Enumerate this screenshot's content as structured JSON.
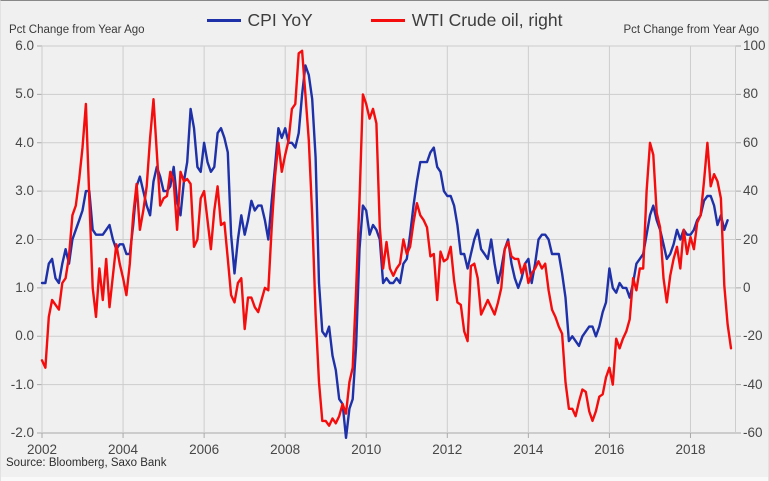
{
  "legend": {
    "items": [
      {
        "label": "CPI YoY",
        "color": "#1e31a8"
      },
      {
        "label": "WTI Crude oil, right",
        "color": "#f50d0d"
      }
    ]
  },
  "left_axis_caption": "Pct Change from Year Ago",
  "right_axis_caption": "Pct Change from Year Ago",
  "source_text": "Source: Bloomberg, Saxo Bank",
  "colors": {
    "background": "#f0f0f0",
    "gridline": "#cdcdcd",
    "axis_line": "#a9a9a9",
    "tick_text": "#474747",
    "cpi_line": "#1e31a8",
    "wti_line": "#f50d0d"
  },
  "chart_data": {
    "type": "line",
    "title": "",
    "x_frequency": "monthly",
    "x_start": {
      "year": 2002,
      "month": 1
    },
    "x_end": {
      "year": 2019,
      "month": 1
    },
    "x_tick_labels": [
      "2002",
      "2004",
      "2006",
      "2008",
      "2010",
      "2012",
      "2014",
      "2016",
      "2018"
    ],
    "grid": true,
    "legend_position": "top",
    "left_axis": {
      "label": "Pct Change from Year Ago",
      "min": -2.0,
      "max": 6.0,
      "ticks": [
        "6.0",
        "5.0",
        "4.0",
        "3.0",
        "2.0",
        "1.0",
        "0.0",
        "-1.0",
        "-2.0"
      ]
    },
    "right_axis": {
      "label": "Pct Change from Year Ago",
      "min": -60,
      "max": 100,
      "ticks": [
        "100",
        "80",
        "60",
        "40",
        "20",
        "0",
        "-20",
        "-40",
        "-60"
      ]
    },
    "series": [
      {
        "name": "CPI YoY",
        "axis": "left",
        "color": "#1e31a8",
        "values": [
          1.1,
          1.1,
          1.5,
          1.6,
          1.2,
          1.1,
          1.5,
          1.8,
          1.5,
          2.0,
          2.2,
          2.4,
          2.6,
          3.0,
          3.0,
          2.2,
          2.1,
          2.1,
          2.1,
          2.2,
          2.3,
          2.0,
          1.8,
          1.9,
          1.9,
          1.7,
          1.7,
          2.3,
          3.1,
          3.3,
          3.0,
          2.7,
          2.5,
          3.2,
          3.5,
          3.3,
          3.0,
          3.0,
          3.1,
          3.5,
          2.8,
          2.5,
          3.2,
          3.6,
          4.7,
          4.3,
          3.5,
          3.4,
          4.0,
          3.6,
          3.4,
          3.5,
          4.2,
          4.3,
          4.1,
          3.8,
          2.1,
          1.3,
          2.0,
          2.5,
          2.1,
          2.4,
          2.8,
          2.6,
          2.7,
          2.7,
          2.4,
          2.0,
          2.8,
          3.5,
          4.3,
          4.1,
          4.3,
          4.0,
          4.0,
          3.9,
          4.2,
          5.0,
          5.6,
          5.4,
          4.9,
          3.7,
          1.1,
          0.1,
          0.0,
          0.2,
          -0.4,
          -0.7,
          -1.3,
          -1.4,
          -2.1,
          -1.5,
          -1.3,
          -0.2,
          1.8,
          2.7,
          2.6,
          2.1,
          2.3,
          2.2,
          2.0,
          1.1,
          1.2,
          1.1,
          1.1,
          1.2,
          1.1,
          1.5,
          1.6,
          2.1,
          2.7,
          3.2,
          3.6,
          3.6,
          3.6,
          3.8,
          3.9,
          3.5,
          3.4,
          3.0,
          2.9,
          2.9,
          2.7,
          2.3,
          1.7,
          1.7,
          1.4,
          1.7,
          2.0,
          2.2,
          1.8,
          1.7,
          1.6,
          2.0,
          1.5,
          1.1,
          1.4,
          1.8,
          2.0,
          1.5,
          1.2,
          1.0,
          1.2,
          1.5,
          1.6,
          1.1,
          1.5,
          2.0,
          2.1,
          2.1,
          2.0,
          1.7,
          1.7,
          1.7,
          1.3,
          0.8,
          -0.1,
          0.0,
          -0.1,
          -0.2,
          0.0,
          0.1,
          0.2,
          0.2,
          0.0,
          0.2,
          0.5,
          0.7,
          1.4,
          1.0,
          0.9,
          1.1,
          1.0,
          1.0,
          0.8,
          1.1,
          1.5,
          1.6,
          1.7,
          2.1,
          2.5,
          2.7,
          2.4,
          2.2,
          1.9,
          1.6,
          1.7,
          1.9,
          2.2,
          2.0,
          2.2,
          2.1,
          2.1,
          2.2,
          2.4,
          2.5,
          2.8,
          2.9,
          2.9,
          2.7,
          2.3,
          2.5,
          2.2,
          2.4,
          null
        ]
      },
      {
        "name": "WTI Crude oil, right",
        "axis": "right",
        "color": "#f50d0d",
        "values": [
          -30,
          -33,
          -12,
          -5,
          -7,
          -9,
          2,
          4,
          13,
          30,
          34,
          45,
          58,
          76,
          37,
          0,
          -12,
          8,
          -5,
          12,
          -8,
          5,
          18,
          10,
          4,
          -3,
          10,
          30,
          43,
          24,
          32,
          42,
          62,
          78,
          56,
          34,
          37,
          38,
          48,
          44,
          24,
          48,
          44,
          45,
          43,
          17,
          20,
          37,
          40,
          28,
          16,
          32,
          42,
          26,
          27,
          12,
          -3,
          -6,
          2,
          4,
          -17,
          -4,
          -4,
          -8,
          -10,
          -5,
          0,
          -1,
          25,
          46,
          60,
          48,
          55,
          61,
          74,
          76,
          97,
          98,
          80,
          61,
          30,
          -11,
          -39,
          -55,
          -55,
          -57,
          -54,
          -56,
          -53,
          -48,
          -52,
          -39,
          -33,
          -1,
          36,
          80,
          76,
          70,
          74,
          68,
          25,
          8,
          19,
          8,
          5,
          8,
          10,
          20,
          14,
          17,
          27,
          35,
          30,
          28,
          25,
          13,
          14,
          -5,
          15,
          11,
          12,
          17,
          3,
          -6,
          -7,
          -18,
          -22,
          9,
          10,
          4,
          -11,
          -8,
          -5,
          -8,
          -11,
          -6,
          0,
          16,
          19,
          13,
          12,
          12,
          6,
          10,
          2,
          6,
          8,
          11,
          8,
          10,
          -1,
          -9,
          -12,
          -16,
          -19,
          -39,
          -50,
          -50,
          -53,
          -47,
          -42,
          -43,
          -51,
          -55,
          -51,
          -45,
          -44,
          -37,
          -33,
          -40,
          -21,
          -25,
          -21,
          -18,
          -13,
          4,
          -1,
          8,
          8,
          40,
          60,
          55,
          31,
          25,
          4,
          -6,
          5,
          12,
          17,
          8,
          24,
          14,
          21,
          16,
          27,
          30,
          44,
          60,
          42,
          47,
          44,
          37,
          1,
          -15,
          -25
        ]
      }
    ]
  }
}
